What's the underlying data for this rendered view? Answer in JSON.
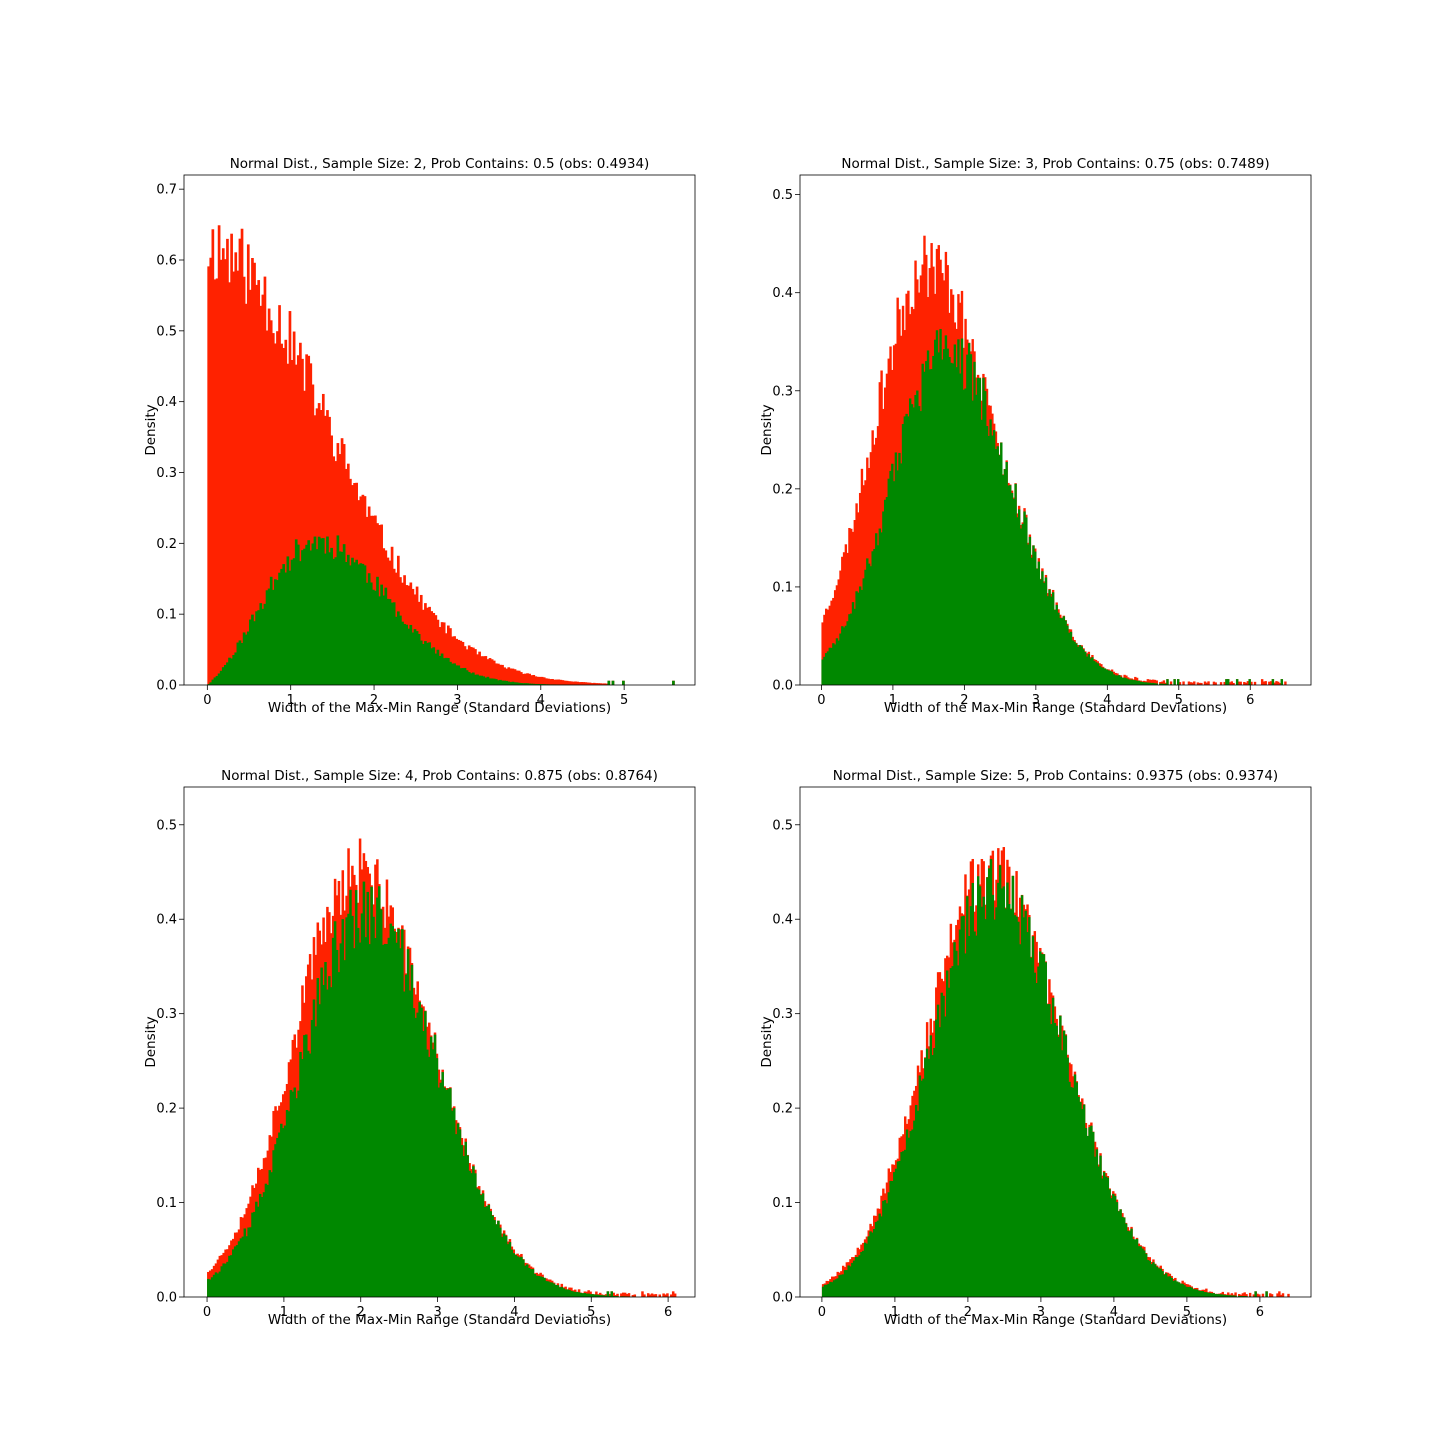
{
  "colors": {
    "contains": "#008800",
    "not_contains": "#ff2200",
    "axis": "#000000",
    "background": "#ffffff"
  },
  "chart_data": [
    {
      "type": "bar",
      "title": "Normal Dist., Sample Size: 2, Prob Contains: 0.5 (obs: 0.4934)",
      "xlabel": "Width of the Max-Min Range (Standard Deviations)",
      "ylabel": "Density",
      "xlim": [
        -0.28,
        5.85
      ],
      "ylim": [
        0,
        0.72
      ],
      "xticks": [
        "0",
        "1",
        "2",
        "3",
        "4",
        "5"
      ],
      "yticks": [
        "0.0",
        "0.1",
        "0.2",
        "0.3",
        "0.4",
        "0.5",
        "0.6",
        "0.7"
      ],
      "bin_start": 0.0,
      "bin_width": 0.025,
      "x_end": 5.6,
      "seed": 11,
      "series": [
        {
          "name": "",
          "role": "total",
          "color": "#ff2200",
          "distribution": "range_of_normal",
          "sample_size": 2,
          "peak_x": 0.0,
          "peak_y": 0.62,
          "noise": 0.09
        },
        {
          "name": "",
          "role": "contains",
          "color": "#008800",
          "distribution": "range_times_contain_prob",
          "sample_size": 2,
          "peak_x": 1.25,
          "peak_y": 0.215,
          "noise": 0.1
        }
      ]
    },
    {
      "type": "bar",
      "title": "Normal Dist., Sample Size: 3, Prob Contains: 0.75 (obs: 0.7489)",
      "xlabel": "Width of the Max-Min Range (Standard Deviations)",
      "ylabel": "Density",
      "xlim": [
        -0.3,
        6.85
      ],
      "ylim": [
        0,
        0.52
      ],
      "xticks": [
        "0",
        "1",
        "2",
        "3",
        "4",
        "5",
        "6"
      ],
      "yticks": [
        "0.0",
        "0.1",
        "0.2",
        "0.3",
        "0.4",
        "0.5"
      ],
      "bin_start": 0.0,
      "bin_width": 0.025,
      "x_end": 6.5,
      "seed": 23,
      "series": [
        {
          "name": "",
          "role": "total",
          "color": "#ff2200",
          "distribution": "range_of_normal",
          "sample_size": 3,
          "peak_x": 1.5,
          "peak_y": 0.43,
          "noise": 0.08
        },
        {
          "name": "",
          "role": "contains",
          "color": "#008800",
          "distribution": "range_times_contain_prob",
          "sample_size": 3,
          "peak_x": 1.75,
          "peak_y": 0.34,
          "noise": 0.09
        }
      ]
    },
    {
      "type": "bar",
      "title": "Normal Dist., Sample Size: 4, Prob Contains: 0.875 (obs: 0.8764)",
      "xlabel": "Width of the Max-Min Range (Standard Deviations)",
      "ylabel": "Density",
      "xlim": [
        -0.3,
        6.35
      ],
      "ylim": [
        0,
        0.54
      ],
      "xticks": [
        "0",
        "1",
        "2",
        "3",
        "4",
        "5",
        "6"
      ],
      "yticks": [
        "0.0",
        "0.1",
        "0.2",
        "0.3",
        "0.4",
        "0.5"
      ],
      "bin_start": 0.0,
      "bin_width": 0.025,
      "x_end": 6.1,
      "seed": 37,
      "series": [
        {
          "name": "",
          "role": "total",
          "color": "#ff2200",
          "distribution": "range_of_normal",
          "sample_size": 4,
          "peak_x": 1.95,
          "peak_y": 0.45,
          "noise": 0.08
        },
        {
          "name": "",
          "role": "contains",
          "color": "#008800",
          "distribution": "range_times_contain_prob",
          "sample_size": 4,
          "peak_x": 2.05,
          "peak_y": 0.41,
          "noise": 0.09
        }
      ]
    },
    {
      "type": "bar",
      "title": "Normal Dist., Sample Size: 5, Prob Contains: 0.9375 (obs: 0.9374)",
      "xlabel": "Width of the Max-Min Range (Standard Deviations)",
      "ylabel": "Density",
      "xlim": [
        -0.3,
        6.7
      ],
      "ylim": [
        0,
        0.54
      ],
      "xticks": [
        "0",
        "1",
        "2",
        "3",
        "4",
        "5",
        "6"
      ],
      "yticks": [
        "0.0",
        "0.1",
        "0.2",
        "0.3",
        "0.4",
        "0.5"
      ],
      "bin_start": 0.0,
      "bin_width": 0.025,
      "x_end": 6.4,
      "seed": 53,
      "series": [
        {
          "name": "",
          "role": "total",
          "color": "#ff2200",
          "distribution": "range_of_normal",
          "sample_size": 5,
          "peak_x": 2.3,
          "peak_y": 0.45,
          "noise": 0.08
        },
        {
          "name": "",
          "role": "contains",
          "color": "#008800",
          "distribution": "range_times_contain_prob",
          "sample_size": 5,
          "peak_x": 2.35,
          "peak_y": 0.43,
          "noise": 0.08
        }
      ]
    }
  ]
}
